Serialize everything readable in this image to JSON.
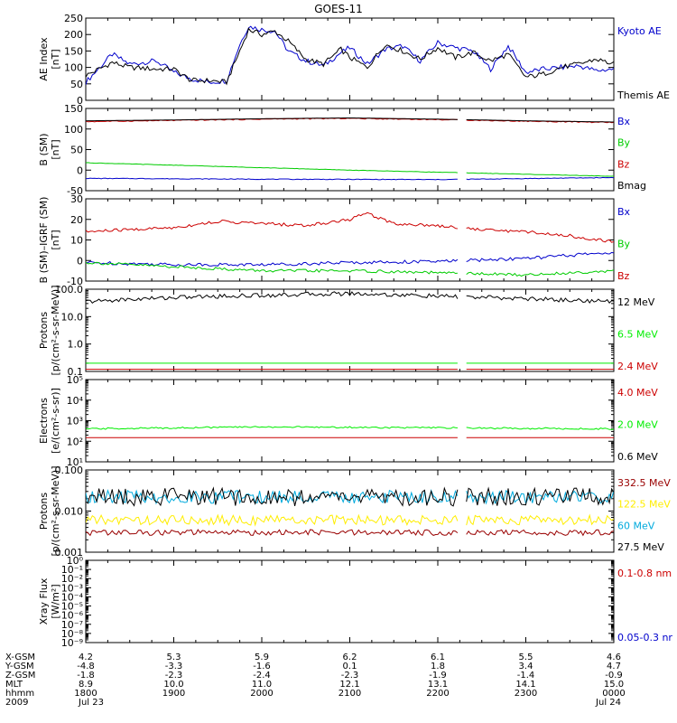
{
  "title": "GOES-11",
  "footer": {
    "row_labels": [
      "X-GSM",
      "Y-GSM",
      "Z-GSM",
      "MLT",
      "hhmm",
      "2009"
    ],
    "columns": [
      {
        "x": 0,
        "values": [
          "4.2",
          "-4.8",
          "-1.8",
          "8.9",
          "1800",
          "Jul 23"
        ]
      },
      {
        "x": 1,
        "values": [
          "5.3",
          "-3.3",
          "-2.3",
          "10.0",
          "1900",
          ""
        ]
      },
      {
        "x": 2,
        "values": [
          "5.9",
          "-1.6",
          "-2.4",
          "11.0",
          "2000",
          ""
        ]
      },
      {
        "x": 3,
        "values": [
          "6.2",
          "0.1",
          "-2.3",
          "12.1",
          "2100",
          ""
        ]
      },
      {
        "x": 4,
        "values": [
          "6.1",
          "1.8",
          "-1.9",
          "13.1",
          "2200",
          ""
        ]
      },
      {
        "x": 5,
        "values": [
          "5.5",
          "3.4",
          "-1.4",
          "14.1",
          "2300",
          ""
        ]
      },
      {
        "x": 6,
        "values": [
          "4.6",
          "4.7",
          "-0.9",
          "15.0",
          "0000",
          "Jul 24"
        ]
      }
    ]
  },
  "chart_data": [
    {
      "type": "line",
      "ylabel": [
        "AE Index",
        "[nT]"
      ],
      "yscale": "linear",
      "ylim": [
        0,
        250
      ],
      "yticks": [
        0,
        50,
        100,
        150,
        200,
        250
      ],
      "xlim": [
        0,
        6
      ],
      "series": [
        {
          "name": "Kyoto AE",
          "color": "#0000cc",
          "x": [
            0,
            0.3,
            0.5,
            0.8,
            1.0,
            1.2,
            1.4,
            1.6,
            1.75,
            1.85,
            2.0,
            2.15,
            2.3,
            2.5,
            2.7,
            2.9,
            3.0,
            3.2,
            3.4,
            3.6,
            3.8,
            4.0,
            4.2,
            4.4,
            4.6,
            4.8,
            5.0,
            5.2,
            5.4,
            5.6,
            5.8,
            6.0
          ],
          "y": [
            55,
            140,
            110,
            120,
            85,
            65,
            55,
            60,
            170,
            225,
            215,
            210,
            150,
            120,
            105,
            145,
            160,
            110,
            155,
            165,
            120,
            175,
            160,
            150,
            95,
            165,
            85,
            95,
            100,
            105,
            90,
            95
          ]
        },
        {
          "name": "Themis AE",
          "color": "#000000",
          "x": [
            0,
            0.3,
            0.5,
            0.8,
            1.0,
            1.2,
            1.4,
            1.6,
            1.75,
            1.85,
            2.0,
            2.15,
            2.3,
            2.5,
            2.7,
            2.9,
            3.0,
            3.2,
            3.4,
            3.6,
            3.8,
            4.0,
            4.2,
            4.4,
            4.6,
            4.8,
            5.0,
            5.2,
            5.4,
            5.6,
            5.8,
            6.0
          ],
          "y": [
            75,
            115,
            100,
            95,
            95,
            60,
            60,
            55,
            150,
            215,
            200,
            210,
            180,
            125,
            110,
            155,
            130,
            100,
            170,
            150,
            125,
            160,
            130,
            145,
            120,
            140,
            70,
            80,
            100,
            110,
            125,
            110
          ]
        }
      ]
    },
    {
      "type": "line",
      "ylabel": [
        "B (SM)",
        "[nT]"
      ],
      "yscale": "linear",
      "ylim": [
        -50,
        150
      ],
      "yticks": [
        -50,
        0,
        50,
        100,
        150
      ],
      "xlim": [
        0,
        6
      ],
      "gaps": [
        [
          4.25,
          4.3
        ]
      ],
      "series": [
        {
          "name": "Bx",
          "color": "#0000cc",
          "x": [
            0,
            2,
            4,
            6
          ],
          "y": [
            -20,
            -22,
            -23,
            -18
          ]
        },
        {
          "name": "By",
          "color": "#00cc00",
          "x": [
            0,
            1,
            2,
            3,
            4,
            5,
            6
          ],
          "y": [
            18,
            12,
            6,
            0,
            -5,
            -10,
            -15
          ]
        },
        {
          "name": "Bz",
          "color": "#cc0000",
          "x": [
            0,
            1,
            2,
            3,
            4,
            5,
            6
          ],
          "y": [
            118,
            121,
            124,
            126,
            123,
            119,
            116
          ]
        },
        {
          "name": "Bmag",
          "color": "#000000",
          "x": [
            0,
            1,
            2,
            3,
            4,
            5,
            6
          ],
          "y": [
            120,
            122,
            125,
            127,
            124,
            120,
            117
          ]
        }
      ]
    },
    {
      "type": "line",
      "ylabel": [
        "B (SM)–IGRF (SM)",
        "[nT]"
      ],
      "yscale": "linear",
      "ylim": [
        -10,
        30
      ],
      "yticks": [
        -10,
        0,
        10,
        20,
        30
      ],
      "xlim": [
        0,
        6
      ],
      "gaps": [
        [
          4.25,
          4.3
        ]
      ],
      "series": [
        {
          "name": "Bx",
          "color": "#0000cc",
          "x": [
            0,
            1,
            2,
            3,
            4,
            5,
            6
          ],
          "y": [
            -1,
            -2,
            -2,
            -1,
            -0.5,
            1,
            4
          ]
        },
        {
          "name": "By",
          "color": "#00cc00",
          "x": [
            0,
            1,
            2,
            3,
            4,
            5,
            6
          ],
          "y": [
            -1,
            -3,
            -5,
            -5,
            -6,
            -7,
            -5
          ]
        },
        {
          "name": "Bz",
          "color": "#cc0000",
          "x": [
            0,
            0.5,
            1,
            1.5,
            2,
            2.5,
            3,
            3.2,
            3.5,
            4,
            4.5,
            5,
            5.5,
            6
          ],
          "y": [
            14,
            15,
            16,
            19,
            18,
            17,
            20,
            23,
            18,
            17,
            15,
            14,
            12,
            9
          ]
        }
      ]
    },
    {
      "type": "line",
      "ylabel": [
        "Protons",
        "[p/(cm²-s-sr-MeV)]"
      ],
      "yscale": "log",
      "ylim": [
        0.1,
        100
      ],
      "yticks": [
        0.1,
        1.0,
        10.0,
        100.0
      ],
      "ytick_labels": [
        "0.1",
        "1.0",
        "10.0",
        "100.0"
      ],
      "xlim": [
        0,
        6
      ],
      "gaps": [
        [
          4.25,
          4.3
        ]
      ],
      "series": [
        {
          "name": "12 MeV",
          "color": "#000000",
          "x": [
            0,
            1,
            2,
            3,
            4,
            5,
            6
          ],
          "y": [
            35,
            50,
            60,
            70,
            55,
            45,
            35
          ]
        },
        {
          "name": "6.5 MeV",
          "color": "#00ee00",
          "x": [
            0,
            6
          ],
          "y": [
            0.2,
            0.2
          ]
        },
        {
          "name": "2.4 MeV",
          "color": "#cc0000",
          "x": [
            0,
            6
          ],
          "y": [
            0.12,
            0.12
          ]
        }
      ]
    },
    {
      "type": "line",
      "ylabel": [
        "Electrons",
        "[e/(cm²-s-sr)]"
      ],
      "yscale": "log",
      "ylim": [
        10,
        100000
      ],
      "yticks": [
        10,
        100,
        1000,
        10000,
        100000
      ],
      "ytick_labels": [
        "10¹",
        "10²",
        "10³",
        "10⁴",
        "10⁵"
      ],
      "xlim": [
        0,
        6
      ],
      "gaps": [
        [
          4.25,
          4.3
        ]
      ],
      "series": [
        {
          "name": "4.0 MeV",
          "color": "#cc0000",
          "x": [
            0,
            6
          ],
          "y": [
            150,
            150
          ]
        },
        {
          "name": "2.0 MeV",
          "color": "#00ee00",
          "x": [
            0,
            2,
            4,
            6
          ],
          "y": [
            400,
            500,
            450,
            400
          ]
        },
        {
          "name": "0.6 MeV",
          "color": "#000000",
          "x": [
            0,
            6
          ],
          "y": [
            100000,
            100000
          ]
        }
      ]
    },
    {
      "type": "line",
      "ylabel": [
        "Protons",
        "[p/(cm²-s-sr-MeV)]"
      ],
      "yscale": "log",
      "ylim": [
        0.001,
        0.1
      ],
      "yticks": [
        0.001,
        0.01,
        0.1
      ],
      "ytick_labels": [
        "0.001",
        "0.010",
        "0.100"
      ],
      "xlim": [
        0,
        6
      ],
      "gaps": [
        [
          4.25,
          4.3
        ]
      ],
      "series": [
        {
          "name": "332.5 MeV",
          "color": "#990000",
          "x": [
            0,
            6
          ],
          "y": [
            0.003,
            0.003
          ]
        },
        {
          "name": "122.5 MeV",
          "color": "#ffee00",
          "x": [
            0,
            6
          ],
          "y": [
            0.006,
            0.006
          ]
        },
        {
          "name": "60 MeV",
          "color": "#00aadd",
          "x": [
            0,
            6
          ],
          "y": [
            0.022,
            0.022
          ]
        },
        {
          "name": "27.5 MeV",
          "color": "#000000",
          "x": [
            0,
            6
          ],
          "y": [
            0.022,
            0.022
          ]
        }
      ]
    },
    {
      "type": "line",
      "ylabel": [
        "Xray Flux",
        "[W/m²]"
      ],
      "yscale": "log",
      "ylim": [
        1e-09,
        1
      ],
      "yticks": [
        1e-09,
        1e-08,
        1e-07,
        1e-06,
        1e-05,
        0.0001,
        0.001,
        0.01,
        0.1,
        1
      ],
      "ytick_labels": [
        "10⁻⁹",
        "10⁻⁸",
        "10⁻⁷",
        "10⁻⁶",
        "10⁻⁵",
        "10⁻⁴",
        "10⁻³",
        "10⁻²",
        "10⁻¹",
        "10⁰"
      ],
      "xlim": [
        0,
        6
      ],
      "series": [
        {
          "name": "0.1-0.8 nm",
          "color": "#cc0000",
          "x": [],
          "y": []
        },
        {
          "name": "0.05-0.3 nr",
          "color": "#0000cc",
          "x": [],
          "y": []
        }
      ]
    }
  ]
}
